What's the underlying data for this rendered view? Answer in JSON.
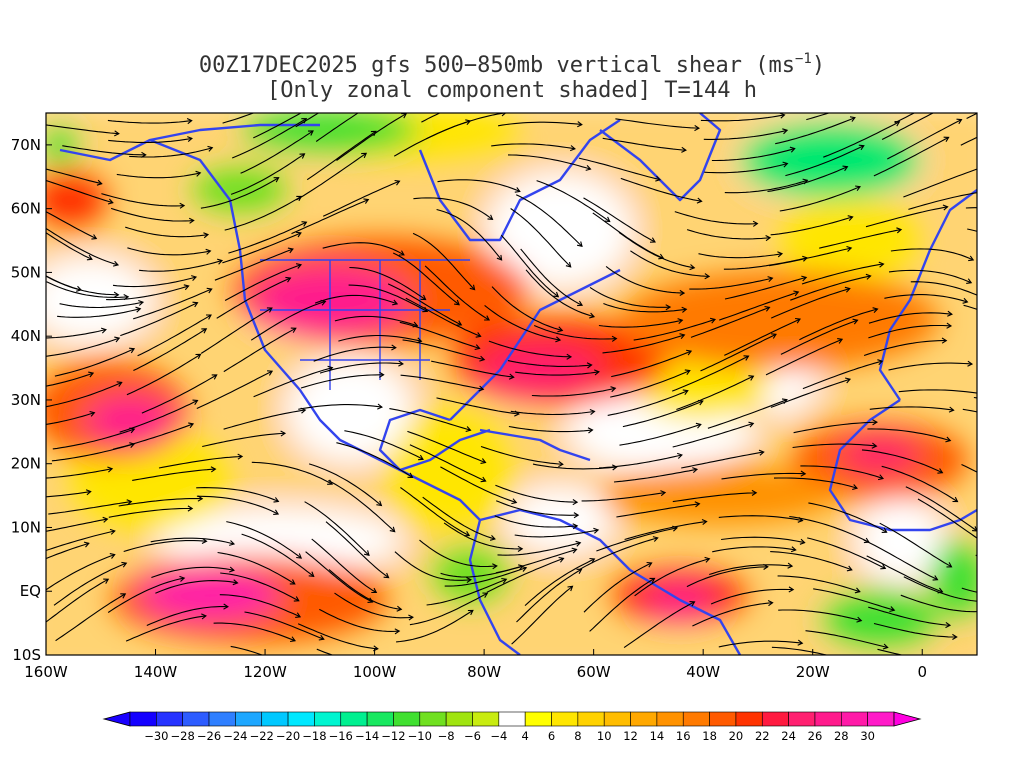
{
  "title": {
    "line1": "00Z17DEC2025 gfs 500−850mb vertical shear (ms",
    "line1_sup": "−1",
    "line1_end": ")",
    "line2": "[Only zonal component shaded] T=144 h"
  },
  "map": {
    "lon_range": [
      -160,
      10
    ],
    "lat_range": [
      -10,
      75
    ],
    "lat_labels": [
      "70N",
      "60N",
      "50N",
      "40N",
      "30N",
      "20N",
      "10N",
      "EQ",
      "10S"
    ],
    "lon_labels": [
      "160W",
      "140W",
      "120W",
      "100W",
      "80W",
      "60W",
      "40W",
      "20W",
      "0"
    ],
    "field": "zonal component of 500-850mb vertical shear",
    "overlay": "streamlines",
    "coastline_color": "#3344ee"
  },
  "colorbar": {
    "labels": [
      "−30",
      "−28",
      "−26",
      "−24",
      "−22",
      "−20",
      "−18",
      "−16",
      "−14",
      "−12",
      "−10",
      "−8",
      "−6",
      "−4",
      "4",
      "6",
      "8",
      "10",
      "12",
      "14",
      "16",
      "18",
      "20",
      "22",
      "24",
      "26",
      "28",
      "30"
    ],
    "colors": [
      "#1400ff",
      "#2633ff",
      "#2d5cff",
      "#2f7fff",
      "#1ea7ff",
      "#00c8ff",
      "#00e8ff",
      "#00f5d0",
      "#00f090",
      "#18e860",
      "#40e030",
      "#70e020",
      "#a0e410",
      "#c8ec10",
      "#ffffff",
      "#ffff00",
      "#ffe600",
      "#ffd200",
      "#ffbd00",
      "#ffa800",
      "#ff9200",
      "#ff7a00",
      "#ff5a00",
      "#ff3300",
      "#ff1a40",
      "#ff2070",
      "#ff1a8c",
      "#ff1aa8",
      "#ff1ac8"
    ],
    "low_arrow_color": "#1a00ff",
    "high_arrow_color": "#ff00e0"
  }
}
